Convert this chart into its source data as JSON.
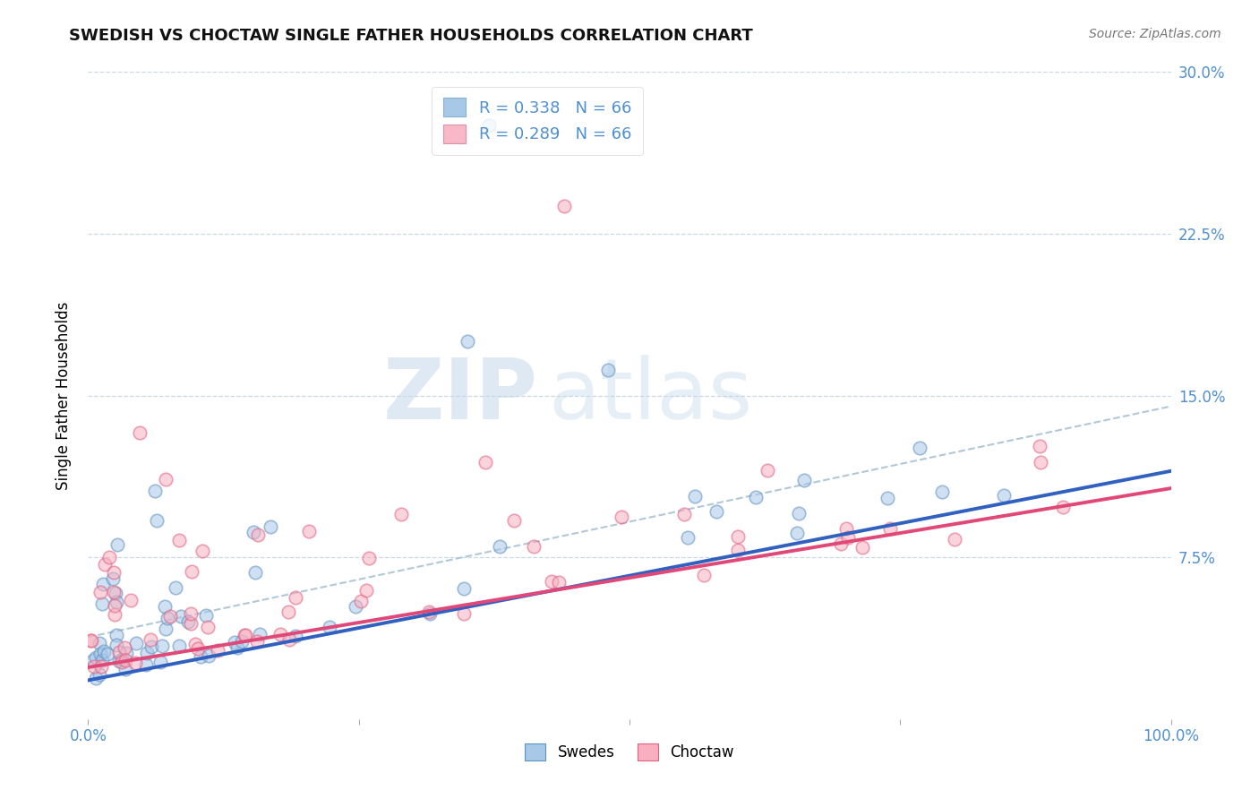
{
  "title": "SWEDISH VS CHOCTAW SINGLE FATHER HOUSEHOLDS CORRELATION CHART",
  "source": "Source: ZipAtlas.com",
  "ylabel": "Single Father Households",
  "watermark_zip": "ZIP",
  "watermark_atlas": "atlas",
  "legend_entries": [
    {
      "label": "R = 0.338   N = 66",
      "facecolor": "#a8c8e8",
      "edgecolor": "#8ab0d0"
    },
    {
      "label": "R = 0.289   N = 66",
      "facecolor": "#f8b8c8",
      "edgecolor": "#e090a8"
    }
  ],
  "legend_labels_bottom": [
    "Swedes",
    "Choctaw"
  ],
  "swedes_facecolor": "#a8c8e8",
  "swedes_edgecolor": "#6090c0",
  "choctaw_facecolor": "#f8b0c0",
  "choctaw_edgecolor": "#e06080",
  "swedes_line_color": "#3060c0",
  "choctaw_line_color": "#e04878",
  "dashed_line_color": "#b0c8d8",
  "background_color": "#ffffff",
  "grid_color": "#c8d8e4",
  "axis_tick_color": "#5090d0",
  "xlim": [
    0,
    1.0
  ],
  "ylim": [
    0,
    0.3
  ],
  "title_fontsize": 13,
  "source_fontsize": 10,
  "tick_fontsize": 12
}
